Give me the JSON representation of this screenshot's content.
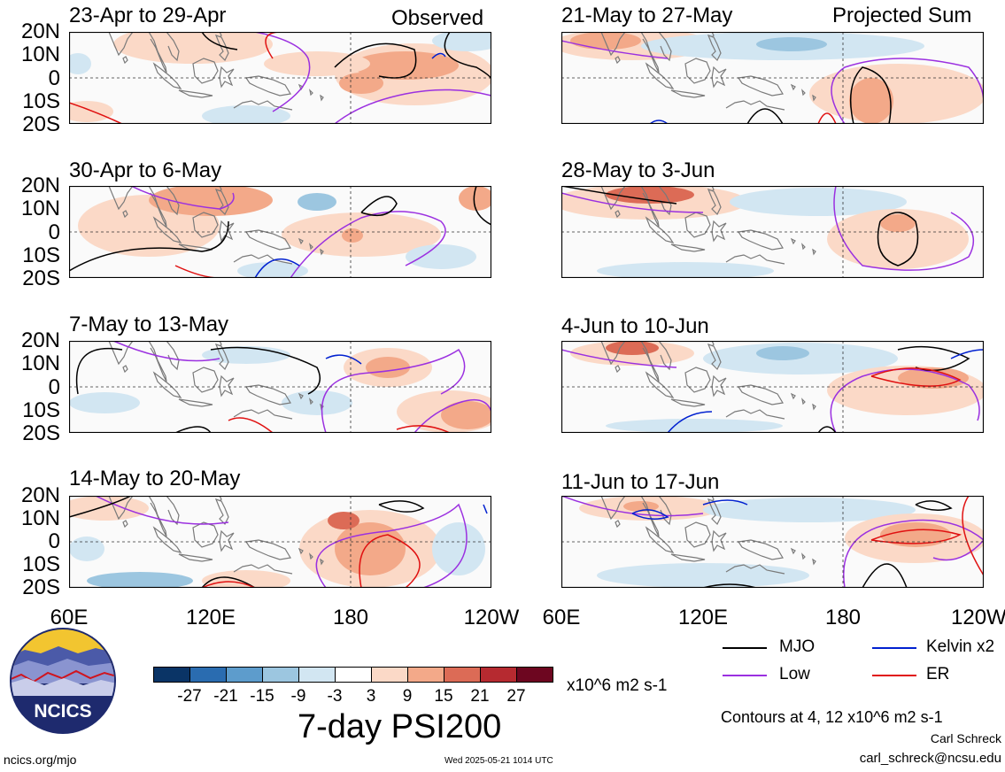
{
  "headers": {
    "left": "Observed",
    "right": "Projected Sum"
  },
  "panels_left": [
    {
      "title": "23-Apr to 29-Apr"
    },
    {
      "title": "30-Apr to 6-May"
    },
    {
      "title": "7-May to 13-May"
    },
    {
      "title": "14-May to 20-May"
    }
  ],
  "panels_right": [
    {
      "title": "21-May to 27-May"
    },
    {
      "title": "28-May to 3-Jun"
    },
    {
      "title": "4-Jun to 10-Jun"
    },
    {
      "title": "11-Jun to 17-Jun"
    }
  ],
  "lat_labels": [
    "20N",
    "10N",
    "0",
    "10S",
    "20S"
  ],
  "lon_labels": [
    "60E",
    "120E",
    "180",
    "120W"
  ],
  "colorbar": {
    "colors": [
      "#0a3466",
      "#2a6cb0",
      "#5d9ccc",
      "#9cc6e0",
      "#d2e6f2",
      "#ffffff",
      "#fbd9c7",
      "#f3a989",
      "#dc6b56",
      "#b62a30",
      "#6d0620"
    ],
    "ticks": [
      "-27",
      "-21",
      "-15",
      "-9",
      "-3",
      "3",
      "9",
      "15",
      "21",
      "27"
    ],
    "units": "x10^6 m2 s-1"
  },
  "legend": {
    "mjo": "MJO",
    "low": "Low",
    "kelvin": "Kelvin x2",
    "er": "ER",
    "mjo_color": "#000000",
    "low_color": "#9b30e0",
    "kelvin_color": "#0020d0",
    "er_color": "#e01010"
  },
  "main_title": "7-day PSI200",
  "contours_note": "Contours at 4, 12 x10^6 m2 s-1",
  "author": "Carl Schreck",
  "email": "carl_schreck@ncsu.edu",
  "site": "ncics.org/mjo",
  "timestamp": "Wed 2025-05-21 1014 UTC",
  "logo_text": "NCICS"
}
